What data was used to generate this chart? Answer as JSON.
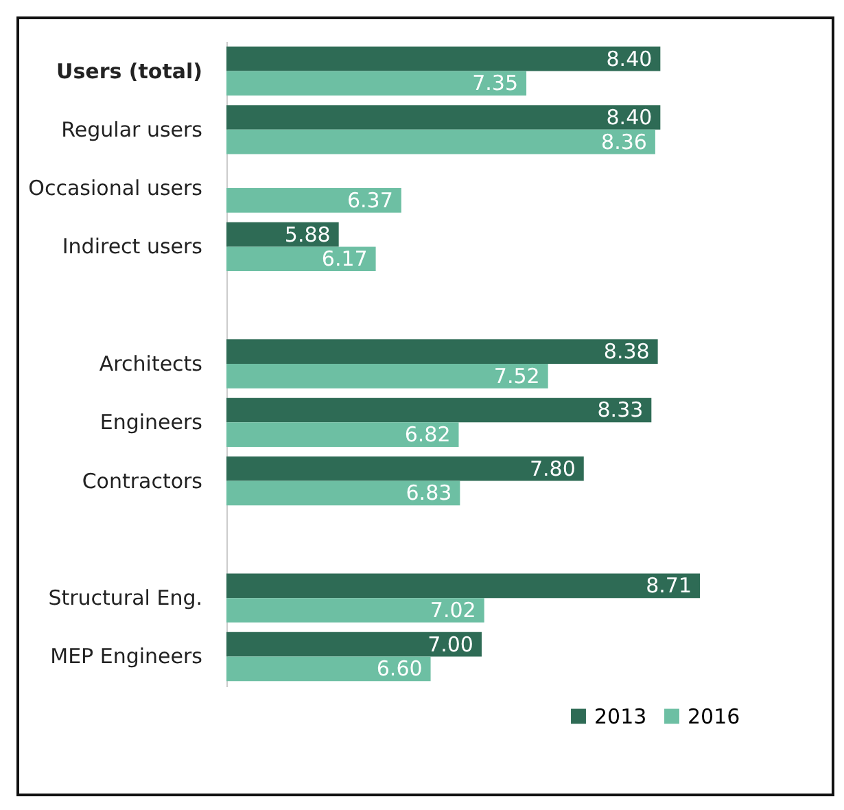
{
  "chart_data": {
    "type": "bar",
    "orientation": "horizontal",
    "categories": [
      "Users (total)",
      "Regular users",
      "Occasional users",
      "Indirect users",
      null,
      "Architects",
      "Engineers",
      "Contractors",
      null,
      "Structural Eng.",
      "MEP Engineers"
    ],
    "series": [
      {
        "name": "2013",
        "color": "#2e6b55",
        "values": [
          8.4,
          8.4,
          null,
          5.88,
          null,
          8.38,
          8.33,
          7.8,
          null,
          8.71,
          7.0
        ],
        "value_labels": [
          "8.40",
          "8.40",
          null,
          "5.88",
          null,
          "8.38",
          "8.33",
          "7.80",
          null,
          "8.71",
          "7.00"
        ]
      },
      {
        "name": "2016",
        "color": "#6dbfa3",
        "values": [
          7.35,
          8.36,
          6.37,
          6.17,
          null,
          7.52,
          6.82,
          6.83,
          null,
          7.02,
          6.6
        ],
        "value_labels": [
          "7.35",
          "8.36",
          "6.37",
          "6.17",
          null,
          "7.52",
          "6.82",
          "6.83",
          null,
          "7.02",
          "6.60"
        ]
      }
    ],
    "xlim": [
      5,
      8.71
    ],
    "legend": "bottom right"
  }
}
